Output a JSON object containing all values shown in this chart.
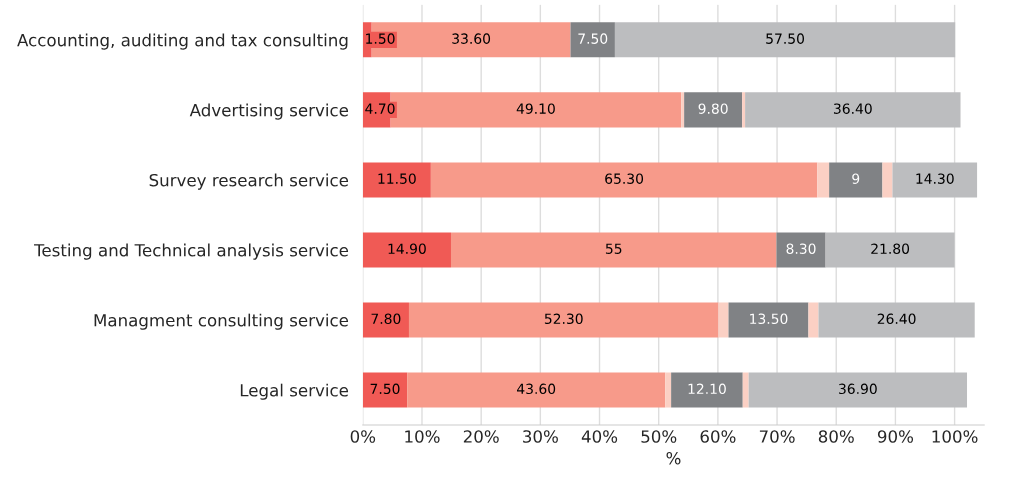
{
  "chart_data": {
    "type": "bar",
    "orientation": "horizontal",
    "stacked": true,
    "xlabel": "%",
    "categories": [
      "Accounting, auditing and tax consulting",
      "Advertising service",
      "Survey research service",
      "Testing and Technical analysis service",
      "Managment consulting service",
      "Legal service"
    ],
    "series": [
      {
        "color": "#f05a55",
        "values": [
          1.5,
          4.7,
          11.5,
          14.9,
          7.8,
          7.5
        ],
        "value_labels": [
          "1.50",
          "4.70",
          "11.50",
          "14.90",
          "7.80",
          "7.50"
        ]
      },
      {
        "color": "#f79a8a",
        "values": [
          33.6,
          49.1,
          65.3,
          55,
          52.3,
          43.6
        ],
        "value_labels": [
          "33.60",
          "49.10",
          "65.30",
          "55",
          "52.30",
          "43.60"
        ]
      },
      {
        "color": "#fbd0c4",
        "values": [
          null,
          0.5,
          2,
          null,
          1.7,
          1
        ]
      },
      {
        "color": "#808285",
        "values": [
          7.5,
          9.8,
          9,
          8.3,
          13.5,
          12.1
        ],
        "value_labels": [
          "7.50",
          "9.80",
          "9",
          "8.30",
          "13.50",
          "12.10"
        ]
      },
      {
        "color": "#fbd0c4",
        "values": [
          null,
          0.5,
          1.7,
          null,
          1.7,
          1
        ]
      },
      {
        "color": "#bcbdbf",
        "values": [
          57.5,
          36.4,
          14.3,
          21.8,
          26.4,
          36.9
        ],
        "value_labels": [
          "57.50",
          "36.40",
          "14.30",
          "21.80",
          "26.40",
          "36.90"
        ]
      }
    ],
    "xlim": [
      0,
      105
    ],
    "xticks": [
      {
        "value": 0,
        "label": "0%"
      },
      {
        "value": 10,
        "label": "10%"
      },
      {
        "value": 20,
        "label": "20%"
      },
      {
        "value": 30,
        "label": "30%"
      },
      {
        "value": 40,
        "label": "40%"
      },
      {
        "value": 50,
        "label": "50%"
      },
      {
        "value": 60,
        "label": "60%"
      },
      {
        "value": 70,
        "label": "70%"
      },
      {
        "value": 80,
        "label": "80%"
      },
      {
        "value": 90,
        "label": "90%"
      },
      {
        "value": 100,
        "label": "100%"
      }
    ],
    "grid": "x",
    "legend": false
  }
}
